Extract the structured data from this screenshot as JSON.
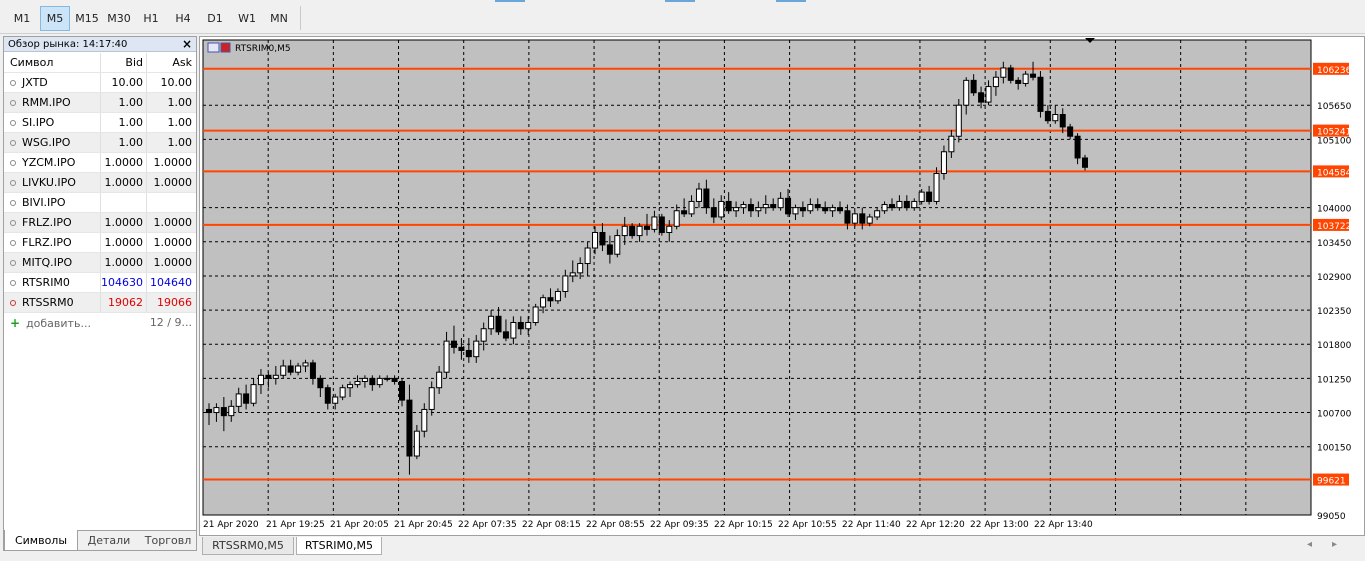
{
  "timeframes": [
    "M1",
    "M5",
    "M15",
    "M30",
    "H1",
    "H4",
    "D1",
    "W1",
    "MN"
  ],
  "active_timeframe": "M5",
  "market_watch": {
    "title": "Обзор рынка: 14:17:40",
    "headers": {
      "symbol": "Символ",
      "bid": "Bid",
      "ask": "Ask"
    },
    "rows": [
      {
        "symbol": "JXTD",
        "bid": "10.00",
        "ask": "10.00"
      },
      {
        "symbol": "RMM.IPO",
        "bid": "1.00",
        "ask": "1.00"
      },
      {
        "symbol": "SI.IPO",
        "bid": "1.00",
        "ask": "1.00"
      },
      {
        "symbol": "WSG.IPO",
        "bid": "1.00",
        "ask": "1.00"
      },
      {
        "symbol": "YZCM.IPO",
        "bid": "1.0000",
        "ask": "1.0000"
      },
      {
        "symbol": "LIVKU.IPO",
        "bid": "1.0000",
        "ask": "1.0000"
      },
      {
        "symbol": "BIVI.IPO",
        "bid": "",
        "ask": ""
      },
      {
        "symbol": "FRLZ.IPO",
        "bid": "1.0000",
        "ask": "1.0000"
      },
      {
        "symbol": "FLRZ.IPO",
        "bid": "1.0000",
        "ask": "1.0000"
      },
      {
        "symbol": "MITQ.IPO",
        "bid": "1.0000",
        "ask": "1.0000"
      },
      {
        "symbol": "RTSRIM0",
        "bid": "104630",
        "ask": "104640"
      },
      {
        "symbol": "RTSSRM0",
        "bid": "19062",
        "ask": "19066"
      }
    ],
    "add_label": "добавить...",
    "count_label": "12 / 9...",
    "tabs": [
      "Символы",
      "Детали",
      "Торговл"
    ]
  },
  "chart_tabs": [
    "RTSSRM0,M5",
    "RTSRIM0,M5"
  ],
  "active_chart_tab": "RTSRIM0,M5",
  "chart_data": {
    "type": "candlestick",
    "title": "RTSRIM0,M5",
    "ylim": [
      99050,
      106700
    ],
    "y_ticks": [
      106236,
      105650,
      105241,
      105100,
      104584,
      104000,
      103722,
      103450,
      102900,
      102350,
      101800,
      101250,
      100700,
      100150,
      99621,
      99050
    ],
    "price_labels": [
      "106236",
      "105650",
      "105241",
      "105100",
      "104584",
      "104000",
      "103722",
      "103450",
      "102900",
      "102350",
      "101800",
      "101250",
      "100700",
      "100150",
      "99621",
      "99050"
    ],
    "highlighted_levels": [
      106236,
      105241,
      104584,
      103722,
      99621
    ],
    "x_labels": [
      "21 Apr 2020",
      "21 Apr 19:25",
      "21 Apr 20:05",
      "21 Apr 20:45",
      "22 Apr 07:35",
      "22 Apr 08:15",
      "22 Apr 08:55",
      "22 Apr 09:35",
      "22 Apr 10:15",
      "22 Apr 10:55",
      "22 Apr 11:40",
      "22 Apr 12:20",
      "22 Apr 13:00",
      "22 Apr 13:40"
    ],
    "grid": true,
    "colors": {
      "background": "#c0c0c0",
      "grid": "#000000",
      "level": "#ff4500",
      "bull": "#ffffff",
      "bear": "#000000"
    },
    "candles": [
      [
        100750,
        100850,
        100500,
        100700
      ],
      [
        100700,
        100850,
        100550,
        100780
      ],
      [
        100780,
        100950,
        100400,
        100650
      ],
      [
        100650,
        100900,
        100550,
        100800
      ],
      [
        100800,
        101100,
        100700,
        101000
      ],
      [
        101000,
        101150,
        100750,
        100850
      ],
      [
        100850,
        101250,
        100800,
        101150
      ],
      [
        101150,
        101400,
        101000,
        101300
      ],
      [
        101300,
        101350,
        101100,
        101250
      ],
      [
        101250,
        101450,
        101150,
        101300
      ],
      [
        101300,
        101550,
        101250,
        101450
      ],
      [
        101450,
        101550,
        101300,
        101350
      ],
      [
        101350,
        101500,
        101300,
        101450
      ],
      [
        101450,
        101550,
        101350,
        101500
      ],
      [
        101500,
        101550,
        101150,
        101250
      ],
      [
        101250,
        101300,
        100950,
        101100
      ],
      [
        101100,
        101150,
        100750,
        100850
      ],
      [
        100850,
        101000,
        100750,
        100950
      ],
      [
        100950,
        101150,
        100900,
        101100
      ],
      [
        101100,
        101200,
        100950,
        101150
      ],
      [
        101150,
        101300,
        101100,
        101200
      ],
      [
        101200,
        101300,
        101100,
        101250
      ],
      [
        101250,
        101300,
        101050,
        101150
      ],
      [
        101150,
        101300,
        101100,
        101250
      ],
      [
        101250,
        101300,
        101200,
        101250
      ],
      [
        101250,
        101300,
        101150,
        101200
      ],
      [
        101200,
        101250,
        100800,
        100900
      ],
      [
        100900,
        101150,
        99700,
        100000
      ],
      [
        100000,
        100500,
        99950,
        100400
      ],
      [
        100400,
        100850,
        100300,
        100750
      ],
      [
        100750,
        101200,
        100650,
        101100
      ],
      [
        101100,
        101450,
        101000,
        101350
      ],
      [
        101350,
        102000,
        101250,
        101850
      ],
      [
        101850,
        102100,
        101650,
        101750
      ],
      [
        101750,
        101900,
        101550,
        101700
      ],
      [
        101700,
        101900,
        101500,
        101600
      ],
      [
        101600,
        101950,
        101500,
        101850
      ],
      [
        101850,
        102150,
        101700,
        102050
      ],
      [
        102050,
        102350,
        101950,
        102250
      ],
      [
        102250,
        102400,
        101950,
        102000
      ],
      [
        102000,
        102200,
        101850,
        101900
      ],
      [
        101900,
        102250,
        101800,
        102150
      ],
      [
        102150,
        102250,
        101950,
        102050
      ],
      [
        102050,
        102250,
        101950,
        102150
      ],
      [
        102150,
        102450,
        102100,
        102400
      ],
      [
        102400,
        102600,
        102300,
        102550
      ],
      [
        102550,
        102700,
        102400,
        102500
      ],
      [
        102500,
        102700,
        102450,
        102650
      ],
      [
        102650,
        103000,
        102550,
        102900
      ],
      [
        102900,
        103150,
        102800,
        102950
      ],
      [
        102950,
        103200,
        102850,
        103100
      ],
      [
        103100,
        103450,
        102900,
        103350
      ],
      [
        103350,
        103700,
        103250,
        103600
      ],
      [
        103600,
        103750,
        103300,
        103400
      ],
      [
        103400,
        103550,
        103100,
        103250
      ],
      [
        103250,
        103650,
        103200,
        103550
      ],
      [
        103550,
        103850,
        103400,
        103700
      ],
      [
        103700,
        103750,
        103500,
        103550
      ],
      [
        103550,
        103750,
        103450,
        103700
      ],
      [
        103700,
        103900,
        103550,
        103650
      ],
      [
        103650,
        103950,
        103600,
        103850
      ],
      [
        103850,
        103900,
        103550,
        103600
      ],
      [
        103600,
        103800,
        103450,
        103700
      ],
      [
        103700,
        104050,
        103650,
        103950
      ],
      [
        103950,
        104150,
        103850,
        103900
      ],
      [
        103900,
        104200,
        103850,
        104100
      ],
      [
        104100,
        104400,
        104000,
        104300
      ],
      [
        104300,
        104450,
        103900,
        104000
      ],
      [
        104000,
        104150,
        103750,
        103850
      ],
      [
        103850,
        104200,
        103800,
        104100
      ],
      [
        104100,
        104250,
        103900,
        103950
      ],
      [
        103950,
        104100,
        103850,
        104000
      ],
      [
        104000,
        104100,
        103900,
        104050
      ],
      [
        104050,
        104150,
        103850,
        103950
      ],
      [
        103950,
        104100,
        103850,
        104000
      ],
      [
        104000,
        104200,
        103900,
        104050
      ],
      [
        104050,
        104150,
        103950,
        104000
      ],
      [
        104000,
        104250,
        103950,
        104150
      ],
      [
        104150,
        104300,
        103850,
        103900
      ],
      [
        103900,
        104050,
        103800,
        104000
      ],
      [
        104000,
        104100,
        103850,
        103950
      ],
      [
        103950,
        104150,
        103900,
        104050
      ],
      [
        104050,
        104150,
        103950,
        104000
      ],
      [
        104000,
        104100,
        103900,
        103950
      ],
      [
        103950,
        104050,
        103850,
        104000
      ],
      [
        104000,
        104100,
        103900,
        103950
      ],
      [
        103950,
        104050,
        103650,
        103750
      ],
      [
        103750,
        103950,
        103700,
        103900
      ],
      [
        103900,
        104000,
        103650,
        103750
      ],
      [
        103750,
        103900,
        103700,
        103850
      ],
      [
        103850,
        104000,
        103800,
        103950
      ],
      [
        103950,
        104100,
        103900,
        104050
      ],
      [
        104050,
        104150,
        103950,
        104000
      ],
      [
        104000,
        104200,
        103950,
        104100
      ],
      [
        104100,
        104200,
        103950,
        104000
      ],
      [
        104000,
        104150,
        103950,
        104100
      ],
      [
        104100,
        104300,
        104050,
        104250
      ],
      [
        104250,
        104350,
        104050,
        104100
      ],
      [
        104100,
        104650,
        104050,
        104550
      ],
      [
        104550,
        105000,
        104450,
        104900
      ],
      [
        104900,
        105250,
        104800,
        105150
      ],
      [
        105150,
        105750,
        105050,
        105650
      ],
      [
        105650,
        106100,
        105500,
        106050
      ],
      [
        106050,
        106150,
        105800,
        105850
      ],
      [
        105850,
        105950,
        105600,
        105700
      ],
      [
        105700,
        106050,
        105650,
        105950
      ],
      [
        105950,
        106200,
        105800,
        106100
      ],
      [
        106100,
        106350,
        106000,
        106250
      ],
      [
        106250,
        106300,
        106000,
        106050
      ],
      [
        106050,
        106100,
        105900,
        106000
      ],
      [
        106000,
        106200,
        105950,
        106150
      ],
      [
        106150,
        106350,
        106050,
        106100
      ],
      [
        106100,
        106200,
        105450,
        105550
      ],
      [
        105550,
        105650,
        105350,
        105400
      ],
      [
        105400,
        105650,
        105350,
        105500
      ],
      [
        105500,
        105600,
        105200,
        105300
      ],
      [
        105300,
        105350,
        105100,
        105150
      ],
      [
        105150,
        105200,
        104700,
        104800
      ],
      [
        104800,
        104850,
        104600,
        104650
      ]
    ]
  }
}
